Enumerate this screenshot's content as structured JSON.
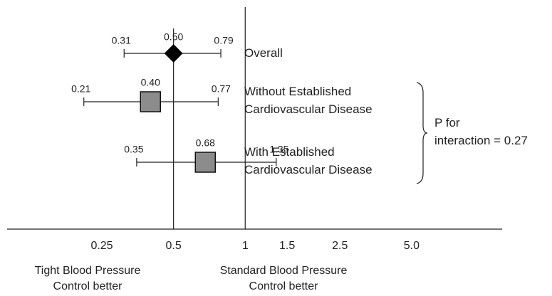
{
  "chart_data": {
    "type": "forest",
    "categories": [
      "Overall",
      "Without Established Cardiovascular Disease",
      "With Established Cardiovascular Disease"
    ],
    "values": [
      0.5,
      0.4,
      0.68
    ],
    "value_labels": [
      "0.50",
      "0.40",
      "0.68"
    ],
    "lower": [
      0.31,
      0.21,
      0.35
    ],
    "upper": [
      0.79,
      0.77,
      1.35
    ],
    "colors": [
      "#000000",
      "#8c8c8c",
      "#8c8c8c"
    ],
    "xlim": [
      0.1,
      12
    ],
    "xticks": [
      0.25,
      0.5,
      1,
      1.5,
      2.5,
      {
        "value": 5,
        "label": "5.0"
      }
    ],
    "log_scale": true,
    "reference_line": 1,
    "annotation": [
      "P for",
      "interaction = 0.27"
    ],
    "xlabel_left": "Tight Blood Pressure Control better",
    "xlabel_right": "Standard Blood Pressure Control better"
  }
}
